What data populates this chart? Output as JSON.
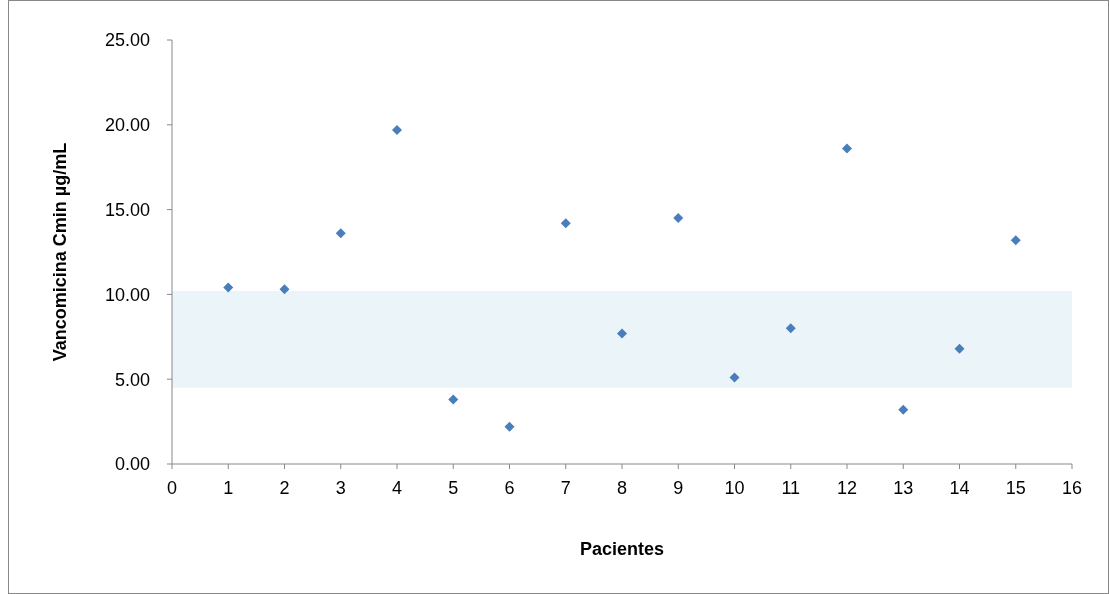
{
  "chart_data": {
    "type": "scatter",
    "xlabel": "Pacientes",
    "ylabel": "Vancomicina Cmin µg/mL",
    "x": [
      1,
      2,
      3,
      4,
      5,
      6,
      7,
      8,
      9,
      10,
      11,
      12,
      13,
      14,
      15
    ],
    "series": [
      {
        "color": "#4a7ebb",
        "values": [
          10.4,
          10.3,
          13.6,
          19.7,
          3.8,
          2.2,
          14.2,
          7.7,
          14.5,
          5.1,
          8.0,
          18.6,
          3.2,
          6.8,
          13.2
        ]
      }
    ],
    "xlim": [
      0,
      16
    ],
    "xticks": [
      0,
      1,
      2,
      3,
      4,
      5,
      6,
      7,
      8,
      9,
      10,
      11,
      12,
      13,
      14,
      15,
      16
    ],
    "ylim": [
      0,
      25
    ],
    "yticks": [
      {
        "value": 0,
        "label": "0.00"
      },
      {
        "value": 5,
        "label": "5.00"
      },
      {
        "value": 10,
        "label": "10.00"
      },
      {
        "value": 15,
        "label": "15.00"
      },
      {
        "value": 20,
        "label": "20.00"
      },
      {
        "value": 25,
        "label": "25.00"
      }
    ],
    "bands": [
      {
        "axis": "y",
        "from": 4.5,
        "to": 10.2,
        "color": "#ebf4f8"
      }
    ],
    "marker": "diamond",
    "grid": false
  }
}
